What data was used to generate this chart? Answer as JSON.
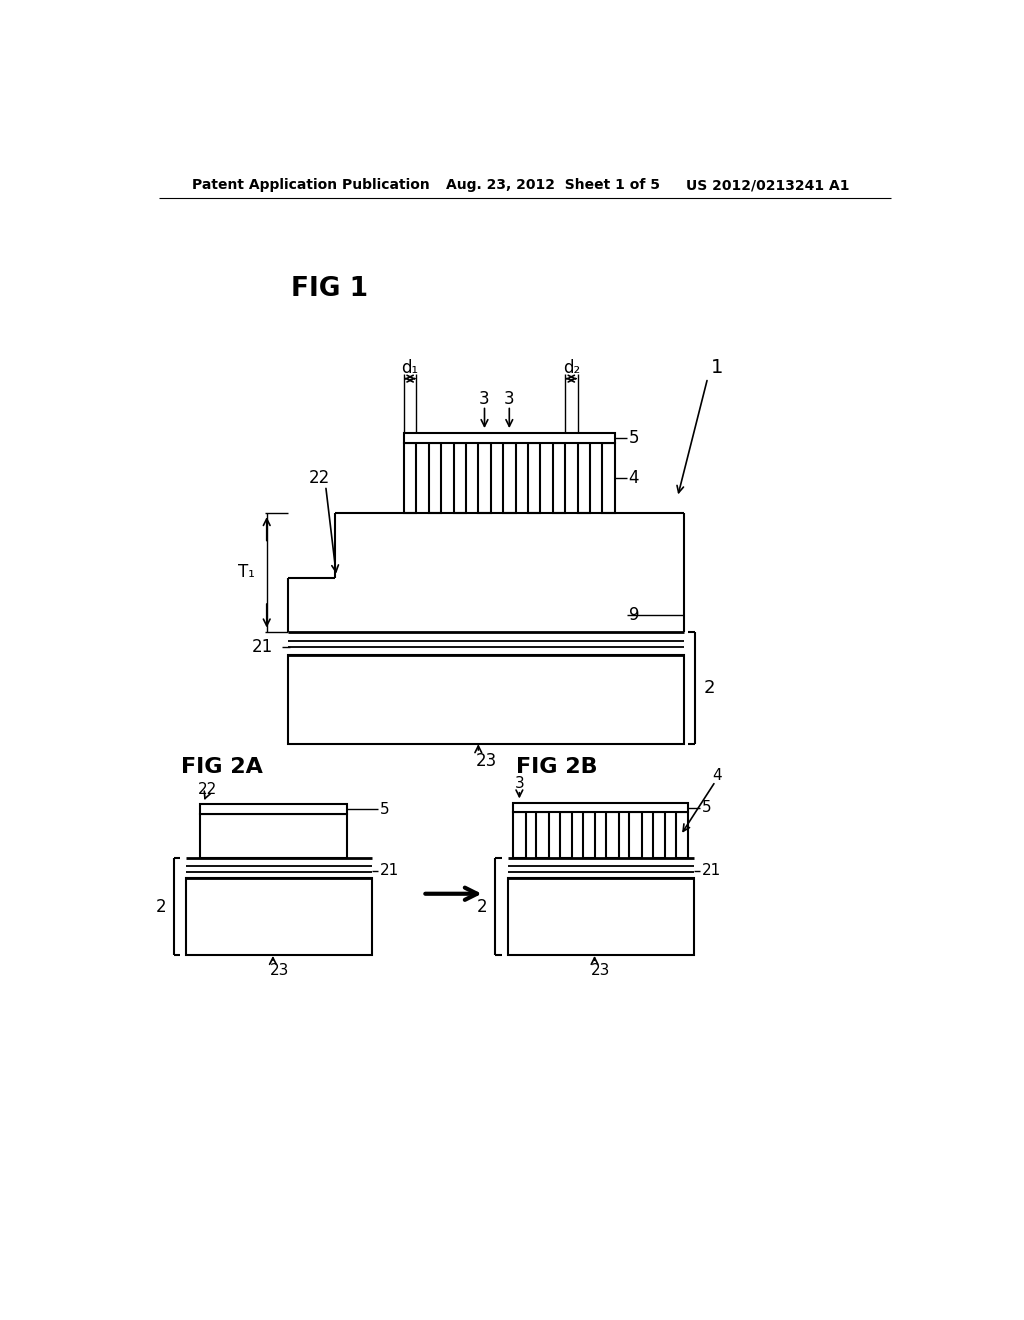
{
  "header_left": "Patent Application Publication",
  "header_mid": "Aug. 23, 2012  Sheet 1 of 5",
  "header_right": "US 2012/0213241 A1",
  "bg_color": "#ffffff",
  "line_color": "#000000"
}
